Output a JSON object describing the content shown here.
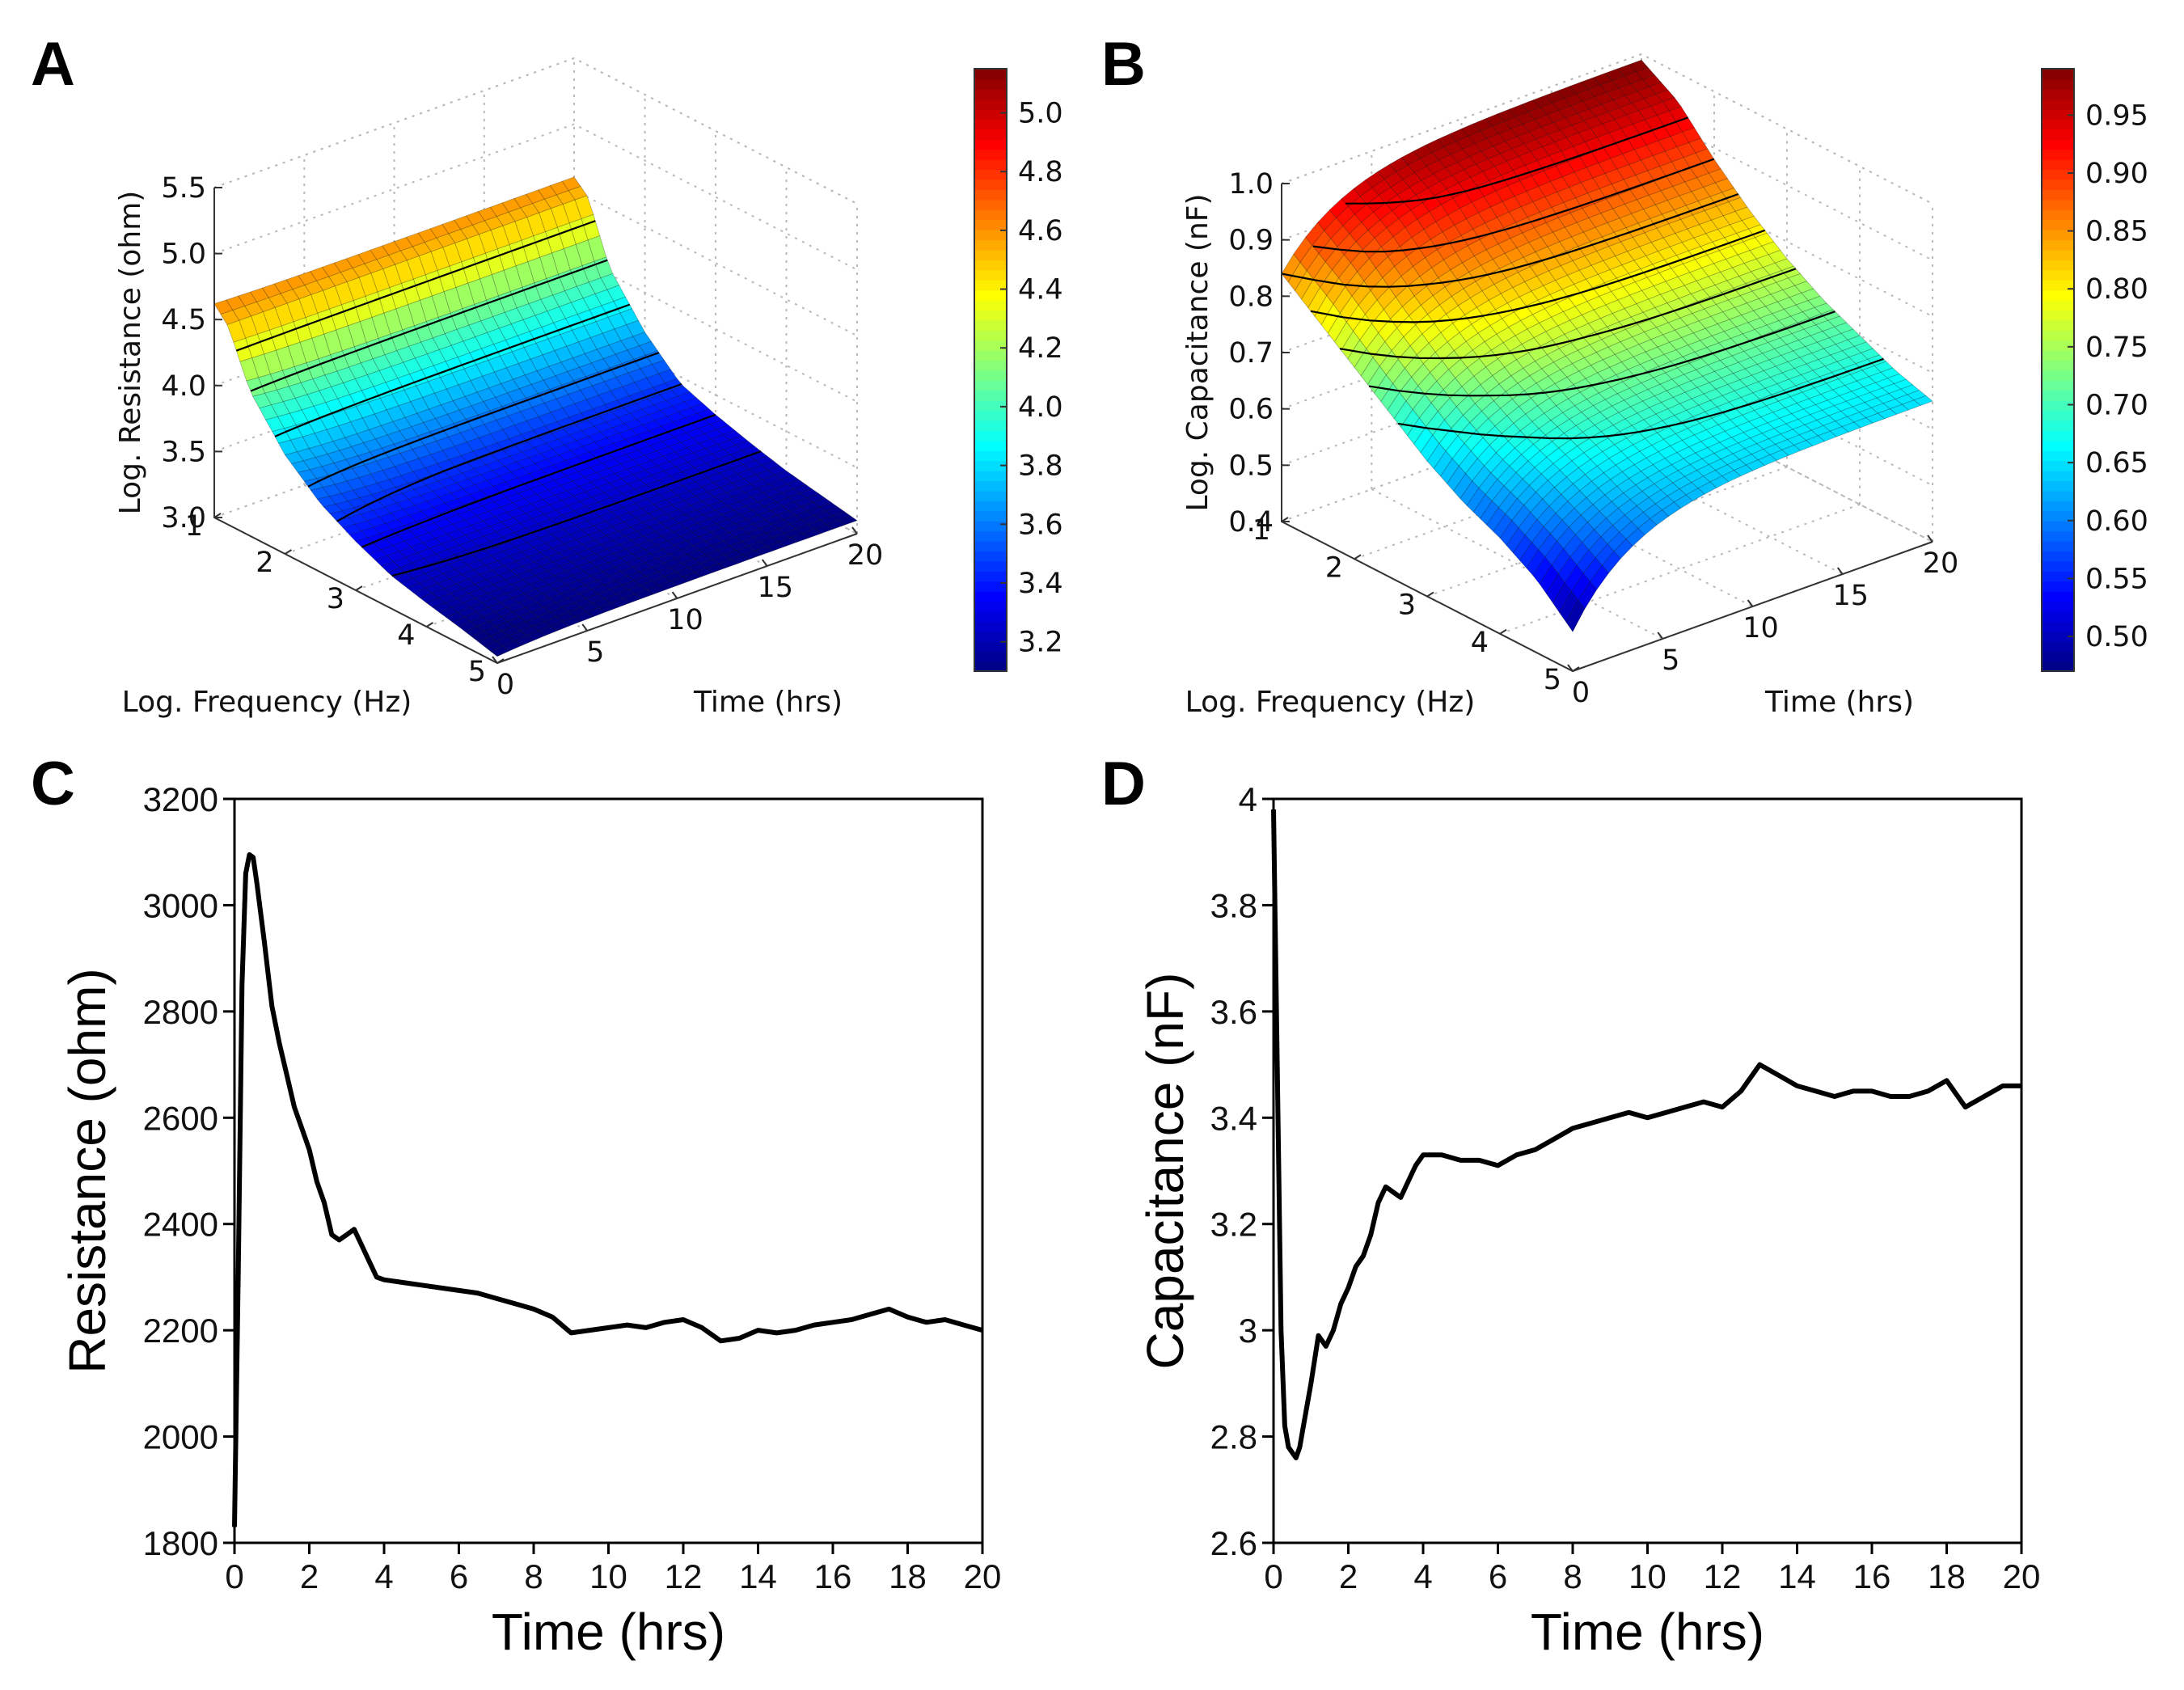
{
  "panels": {
    "A": {
      "letter": "A"
    },
    "B": {
      "letter": "B"
    },
    "C": {
      "letter": "C"
    },
    "D": {
      "letter": "D"
    }
  },
  "chart_data": [
    {
      "id": "A",
      "type": "surface3d",
      "xlabel": "Log. Frequency (Hz)",
      "ylabel": "Time (hrs)",
      "zlabel": "Log. Resistance (ohm)",
      "x_ticks": [
        "1",
        "2",
        "3",
        "4",
        "5"
      ],
      "y_ticks": [
        "0",
        "5",
        "10",
        "15",
        "20"
      ],
      "z_ticks": [
        "3.0",
        "3.5",
        "4.0",
        "4.5",
        "5.0",
        "5.5"
      ],
      "xlim": [
        1,
        5
      ],
      "ylim": [
        0,
        20
      ],
      "zlim": [
        3.0,
        5.5
      ],
      "colorbar": {
        "ticks": [
          "3.2",
          "3.4",
          "3.6",
          "3.8",
          "4.0",
          "4.2",
          "4.4",
          "4.6",
          "4.8",
          "5.0"
        ],
        "range": [
          3.1,
          5.15
        ]
      },
      "surface_profile": {
        "freq": [
          1,
          1.2,
          1.5,
          2,
          2.5,
          3,
          3.5,
          4,
          4.5,
          5
        ],
        "value": [
          4.6,
          4.5,
          4.05,
          3.7,
          3.45,
          3.35,
          3.27,
          3.2,
          3.15,
          3.1
        ],
        "start_freq": [
          1,
          1.2,
          1.5,
          2,
          2.5,
          3,
          3.5,
          4,
          4.5,
          5
        ],
        "start_value": [
          4.62,
          4.5,
          4.1,
          3.75,
          3.52,
          3.37,
          3.25,
          3.18,
          3.12,
          3.05
        ]
      },
      "contour_levels": [
        4.35,
        4.1,
        3.85,
        3.6,
        3.45,
        3.35,
        3.25
      ]
    },
    {
      "id": "B",
      "type": "surface3d",
      "xlabel": "Log. Frequency (Hz)",
      "ylabel": "Time (hrs)",
      "zlabel": "Log. Capacitance (nF)",
      "x_ticks": [
        "1",
        "2",
        "3",
        "4",
        "5"
      ],
      "y_ticks": [
        "0",
        "5",
        "10",
        "15",
        "20"
      ],
      "z_ticks": [
        "0.4",
        "0.5",
        "0.6",
        "0.7",
        "0.8",
        "0.9",
        "1.0"
      ],
      "xlim": [
        1,
        5
      ],
      "ylim": [
        0,
        20
      ],
      "zlim": [
        0.4,
        1.0
      ],
      "colorbar": {
        "ticks": [
          "0.50",
          "0.55",
          "0.60",
          "0.65",
          "0.70",
          "0.75",
          "0.80",
          "0.85",
          "0.90",
          "0.95"
        ],
        "range": [
          0.47,
          0.99
        ]
      },
      "surface_profile": {
        "freq": [
          1,
          1.5,
          2,
          2.5,
          3,
          3.5,
          4,
          4.5,
          5
        ],
        "value": [
          0.99,
          0.95,
          0.88,
          0.82,
          0.77,
          0.73,
          0.7,
          0.67,
          0.65
        ],
        "start_freq": [
          1,
          1.5,
          2,
          2.5,
          3,
          3.5,
          4,
          4.5,
          5
        ],
        "start_value": [
          0.84,
          0.79,
          0.74,
          0.69,
          0.64,
          0.6,
          0.57,
          0.53,
          0.47
        ]
      },
      "contour_levels": [
        0.93,
        0.88,
        0.84,
        0.8,
        0.76,
        0.72,
        0.68
      ]
    },
    {
      "id": "C",
      "type": "line",
      "xlabel": "Time (hrs)",
      "ylabel": "Resistance (ohm)",
      "xlim": [
        0,
        20
      ],
      "ylim": [
        1800,
        3200
      ],
      "x_ticks": [
        0,
        2,
        4,
        6,
        8,
        10,
        12,
        14,
        16,
        18,
        20
      ],
      "y_ticks": [
        1800,
        2000,
        2200,
        2400,
        2600,
        2800,
        3000,
        3200
      ],
      "series": [
        {
          "name": "Resistance",
          "x": [
            0,
            0.1,
            0.2,
            0.3,
            0.4,
            0.5,
            0.6,
            0.8,
            1.0,
            1.2,
            1.4,
            1.6,
            1.8,
            2.0,
            2.2,
            2.4,
            2.6,
            2.8,
            3.0,
            3.2,
            3.4,
            3.6,
            3.8,
            4.0,
            4.5,
            5,
            5.5,
            6,
            6.5,
            7,
            7.5,
            8,
            8.5,
            9,
            9.5,
            10,
            10.5,
            11,
            11.5,
            12,
            12.5,
            13,
            13.5,
            14,
            14.5,
            15,
            15.5,
            16,
            16.5,
            17,
            17.5,
            18,
            18.5,
            19,
            19.5,
            20
          ],
          "y": [
            1830,
            2300,
            2850,
            3060,
            3095,
            3090,
            3040,
            2930,
            2810,
            2740,
            2680,
            2620,
            2580,
            2540,
            2480,
            2440,
            2380,
            2370,
            2380,
            2390,
            2360,
            2330,
            2300,
            2295,
            2290,
            2285,
            2280,
            2275,
            2270,
            2260,
            2250,
            2240,
            2225,
            2195,
            2200,
            2205,
            2210,
            2205,
            2215,
            2220,
            2205,
            2180,
            2185,
            2200,
            2195,
            2200,
            2210,
            2215,
            2220,
            2230,
            2240,
            2225,
            2215,
            2220,
            2210,
            2200
          ]
        }
      ]
    },
    {
      "id": "D",
      "type": "line",
      "xlabel": "Time (hrs)",
      "ylabel": "Capacitance (nF)",
      "xlim": [
        0,
        20
      ],
      "ylim": [
        2.6,
        4.0
      ],
      "x_ticks": [
        0,
        2,
        4,
        6,
        8,
        10,
        12,
        14,
        16,
        18,
        20
      ],
      "y_ticks": [
        2.6,
        2.8,
        3.0,
        3.2,
        3.4,
        3.6,
        3.8,
        4.0
      ],
      "series": [
        {
          "name": "Capacitance",
          "x": [
            0,
            0.1,
            0.2,
            0.3,
            0.4,
            0.5,
            0.6,
            0.7,
            0.8,
            1.0,
            1.2,
            1.4,
            1.6,
            1.8,
            2.0,
            2.2,
            2.4,
            2.6,
            2.8,
            3.0,
            3.2,
            3.4,
            3.6,
            3.8,
            4.0,
            4.5,
            5,
            5.5,
            6,
            6.5,
            7,
            7.5,
            8,
            8.5,
            9,
            9.5,
            10,
            10.5,
            11,
            11.5,
            12,
            12.5,
            13,
            13.5,
            14,
            14.5,
            15,
            15.5,
            16,
            16.5,
            17,
            17.5,
            18,
            18.5,
            19,
            19.5,
            20
          ],
          "y": [
            3.98,
            3.5,
            3.0,
            2.82,
            2.78,
            2.77,
            2.76,
            2.78,
            2.82,
            2.9,
            2.99,
            2.97,
            3.0,
            3.05,
            3.08,
            3.12,
            3.14,
            3.18,
            3.24,
            3.27,
            3.26,
            3.25,
            3.28,
            3.31,
            3.33,
            3.33,
            3.32,
            3.32,
            3.31,
            3.33,
            3.34,
            3.36,
            3.38,
            3.39,
            3.4,
            3.41,
            3.4,
            3.41,
            3.42,
            3.43,
            3.42,
            3.45,
            3.5,
            3.48,
            3.46,
            3.45,
            3.44,
            3.45,
            3.45,
            3.44,
            3.44,
            3.45,
            3.47,
            3.42,
            3.44,
            3.46,
            3.46
          ]
        }
      ]
    }
  ]
}
